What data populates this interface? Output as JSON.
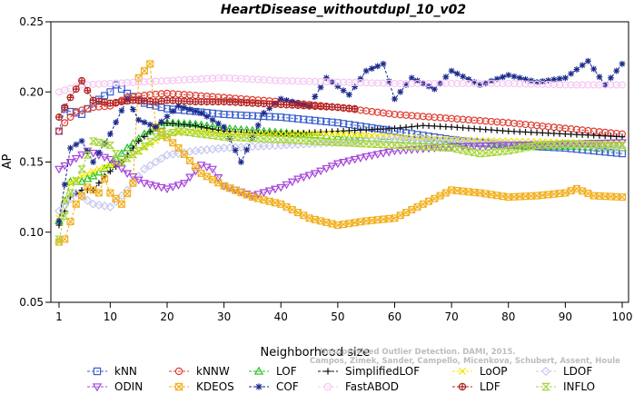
{
  "chart_data": {
    "type": "line",
    "title": "HeartDisease_withoutdupl_10_v02",
    "xlabel": "Neighborhood size",
    "ylabel": "AP",
    "xlim": [
      1,
      100
    ],
    "ylim": [
      0.05,
      0.25
    ],
    "xticks": [
      "1",
      "10",
      "20",
      "30",
      "40",
      "50",
      "60",
      "70",
      "80",
      "90",
      "100"
    ],
    "yticks": [
      "0.05",
      "0.10",
      "0.15",
      "0.20",
      "0.25"
    ],
    "grid": false,
    "legend_position": "bottom",
    "series": [
      {
        "name": "kNN",
        "color": "#3a5fcd",
        "marker": "square",
        "x_start": 1,
        "x_end": 100,
        "points": [
          [
            1,
            0.172
          ],
          [
            2,
            0.188
          ],
          [
            3,
            0.186
          ],
          [
            5,
            0.184
          ],
          [
            7,
            0.192
          ],
          [
            10,
            0.2
          ],
          [
            11,
            0.205
          ],
          [
            13,
            0.199
          ],
          [
            16,
            0.192
          ],
          [
            20,
            0.188
          ],
          [
            25,
            0.186
          ],
          [
            30,
            0.184
          ],
          [
            40,
            0.182
          ],
          [
            50,
            0.178
          ],
          [
            60,
            0.172
          ],
          [
            70,
            0.166
          ],
          [
            80,
            0.162
          ],
          [
            90,
            0.16
          ],
          [
            100,
            0.156
          ]
        ]
      },
      {
        "name": "kNNW",
        "color": "#e03c31",
        "marker": "circle",
        "x_start": 1,
        "x_end": 100,
        "points": [
          [
            1,
            0.172
          ],
          [
            2,
            0.178
          ],
          [
            4,
            0.186
          ],
          [
            7,
            0.189
          ],
          [
            10,
            0.19
          ],
          [
            13,
            0.196
          ],
          [
            17,
            0.198
          ],
          [
            20,
            0.199
          ],
          [
            30,
            0.196
          ],
          [
            40,
            0.193
          ],
          [
            50,
            0.189
          ],
          [
            60,
            0.184
          ],
          [
            70,
            0.181
          ],
          [
            80,
            0.178
          ],
          [
            90,
            0.174
          ],
          [
            100,
            0.17
          ]
        ]
      },
      {
        "name": "LOF",
        "color": "#22c11f",
        "marker": "triangle",
        "x_start": 1,
        "x_end": 100,
        "points": [
          [
            1,
            0.108
          ],
          [
            3,
            0.136
          ],
          [
            5,
            0.136
          ],
          [
            7,
            0.14
          ],
          [
            10,
            0.148
          ],
          [
            13,
            0.16
          ],
          [
            16,
            0.17
          ],
          [
            20,
            0.178
          ],
          [
            25,
            0.177
          ],
          [
            30,
            0.174
          ],
          [
            40,
            0.171
          ],
          [
            50,
            0.168
          ],
          [
            60,
            0.166
          ],
          [
            70,
            0.164
          ],
          [
            80,
            0.162
          ],
          [
            90,
            0.161
          ],
          [
            100,
            0.16
          ]
        ]
      },
      {
        "name": "SimplifiedLOF",
        "color": "#111111",
        "marker": "plus",
        "x_start": 1,
        "x_end": 100,
        "points": [
          [
            1,
            0.105
          ],
          [
            3,
            0.125
          ],
          [
            5,
            0.13
          ],
          [
            7,
            0.13
          ],
          [
            9,
            0.14
          ],
          [
            12,
            0.15
          ],
          [
            15,
            0.165
          ],
          [
            19,
            0.178
          ],
          [
            25,
            0.176
          ],
          [
            30,
            0.172
          ],
          [
            40,
            0.17
          ],
          [
            50,
            0.172
          ],
          [
            60,
            0.174
          ],
          [
            65,
            0.176
          ],
          [
            70,
            0.175
          ],
          [
            80,
            0.172
          ],
          [
            90,
            0.17
          ],
          [
            100,
            0.168
          ]
        ]
      },
      {
        "name": "LoOP",
        "color": "#f2e600",
        "marker": "x",
        "x_start": 1,
        "x_end": 100,
        "points": [
          [
            1,
            0.11
          ],
          [
            3,
            0.135
          ],
          [
            5,
            0.14
          ],
          [
            8,
            0.145
          ],
          [
            12,
            0.15
          ],
          [
            16,
            0.16
          ],
          [
            20,
            0.17
          ],
          [
            25,
            0.172
          ],
          [
            30,
            0.17
          ],
          [
            40,
            0.17
          ],
          [
            50,
            0.17
          ],
          [
            60,
            0.168
          ],
          [
            70,
            0.166
          ],
          [
            80,
            0.165
          ],
          [
            90,
            0.164
          ],
          [
            100,
            0.163
          ]
        ]
      },
      {
        "name": "LDOF",
        "color": "#c8c8f0",
        "marker": "diamond",
        "x_start": 1,
        "x_end": 100,
        "points": [
          [
            1,
            0.115
          ],
          [
            4,
            0.128
          ],
          [
            7,
            0.12
          ],
          [
            10,
            0.118
          ],
          [
            13,
            0.13
          ],
          [
            16,
            0.145
          ],
          [
            20,
            0.155
          ],
          [
            25,
            0.158
          ],
          [
            30,
            0.16
          ],
          [
            40,
            0.162
          ],
          [
            50,
            0.164
          ],
          [
            60,
            0.166
          ],
          [
            70,
            0.165
          ],
          [
            80,
            0.163
          ],
          [
            90,
            0.162
          ],
          [
            100,
            0.16
          ]
        ]
      },
      {
        "name": "ODIN",
        "color": "#a545d9",
        "marker": "triangle-down",
        "x_start": 1,
        "x_end": 100,
        "points": [
          [
            1,
            0.145
          ],
          [
            3,
            0.15
          ],
          [
            6,
            0.158
          ],
          [
            10,
            0.152
          ],
          [
            13,
            0.142
          ],
          [
            16,
            0.135
          ],
          [
            20,
            0.131
          ],
          [
            23,
            0.135
          ],
          [
            26,
            0.148
          ],
          [
            28,
            0.145
          ],
          [
            30,
            0.133
          ],
          [
            35,
            0.126
          ],
          [
            40,
            0.132
          ],
          [
            43,
            0.138
          ],
          [
            46,
            0.142
          ],
          [
            50,
            0.149
          ],
          [
            55,
            0.154
          ],
          [
            60,
            0.158
          ],
          [
            70,
            0.161
          ],
          [
            80,
            0.162
          ],
          [
            90,
            0.163
          ],
          [
            100,
            0.164
          ]
        ]
      },
      {
        "name": "KDEOS",
        "color": "#f2b01e",
        "marker": "square-x",
        "x_start": 1,
        "x_end": 100,
        "points": [
          [
            1,
            0.093
          ],
          [
            2,
            0.095
          ],
          [
            4,
            0.12
          ],
          [
            6,
            0.132
          ],
          [
            8,
            0.128
          ],
          [
            9,
            0.138
          ],
          [
            10,
            0.128
          ],
          [
            12,
            0.12
          ],
          [
            14,
            0.135
          ],
          [
            15,
            0.21
          ],
          [
            17,
            0.22
          ],
          [
            18,
            0.175
          ],
          [
            22,
            0.16
          ],
          [
            26,
            0.142
          ],
          [
            30,
            0.133
          ],
          [
            35,
            0.125
          ],
          [
            40,
            0.12
          ],
          [
            45,
            0.11
          ],
          [
            50,
            0.105
          ],
          [
            55,
            0.108
          ],
          [
            60,
            0.11
          ],
          [
            65,
            0.12
          ],
          [
            70,
            0.13
          ],
          [
            75,
            0.128
          ],
          [
            80,
            0.125
          ],
          [
            85,
            0.126
          ],
          [
            90,
            0.128
          ],
          [
            92,
            0.131
          ],
          [
            95,
            0.126
          ],
          [
            100,
            0.125
          ]
        ]
      },
      {
        "name": "COF",
        "color": "#1a2a8c",
        "marker": "asterisk",
        "x_start": 1,
        "x_end": 100,
        "points": [
          [
            1,
            0.108
          ],
          [
            3,
            0.16
          ],
          [
            5,
            0.165
          ],
          [
            7,
            0.15
          ],
          [
            10,
            0.17
          ],
          [
            13,
            0.195
          ],
          [
            15,
            0.18
          ],
          [
            18,
            0.175
          ],
          [
            22,
            0.19
          ],
          [
            26,
            0.185
          ],
          [
            30,
            0.175
          ],
          [
            33,
            0.15
          ],
          [
            37,
            0.185
          ],
          [
            40,
            0.195
          ],
          [
            45,
            0.19
          ],
          [
            48,
            0.21
          ],
          [
            52,
            0.198
          ],
          [
            55,
            0.215
          ],
          [
            58,
            0.22
          ],
          [
            60,
            0.195
          ],
          [
            63,
            0.21
          ],
          [
            67,
            0.202
          ],
          [
            70,
            0.215
          ],
          [
            75,
            0.205
          ],
          [
            80,
            0.212
          ],
          [
            85,
            0.207
          ],
          [
            90,
            0.21
          ],
          [
            94,
            0.222
          ],
          [
            97,
            0.205
          ],
          [
            100,
            0.22
          ]
        ]
      },
      {
        "name": "FastABOD",
        "color": "#f5c6f2",
        "marker": "circle",
        "x_start": 1,
        "x_end": 100,
        "points": [
          [
            1,
            0.2
          ],
          [
            5,
            0.205
          ],
          [
            10,
            0.206
          ],
          [
            15,
            0.207
          ],
          [
            20,
            0.208
          ],
          [
            30,
            0.21
          ],
          [
            40,
            0.208
          ],
          [
            50,
            0.207
          ],
          [
            60,
            0.206
          ],
          [
            70,
            0.206
          ],
          [
            80,
            0.206
          ],
          [
            90,
            0.205
          ],
          [
            100,
            0.205
          ]
        ]
      },
      {
        "name": "LDF",
        "color": "#b02020",
        "marker": "circle-plus",
        "x_start": 1,
        "x_end": 53,
        "points": [
          [
            1,
            0.182
          ],
          [
            3,
            0.196
          ],
          [
            5,
            0.208
          ],
          [
            7,
            0.194
          ],
          [
            10,
            0.192
          ],
          [
            14,
            0.194
          ],
          [
            18,
            0.193
          ],
          [
            20,
            0.194
          ],
          [
            25,
            0.193
          ],
          [
            30,
            0.193
          ],
          [
            35,
            0.192
          ],
          [
            40,
            0.191
          ],
          [
            45,
            0.19
          ],
          [
            50,
            0.189
          ],
          [
            53,
            0.188
          ]
        ]
      },
      {
        "name": "INFLO",
        "color": "#a8d63c",
        "marker": "hourglass",
        "x_start": 1,
        "x_end": 100,
        "points": [
          [
            1,
            0.095
          ],
          [
            3,
            0.128
          ],
          [
            5,
            0.145
          ],
          [
            7,
            0.165
          ],
          [
            10,
            0.162
          ],
          [
            12,
            0.15
          ],
          [
            15,
            0.158
          ],
          [
            18,
            0.168
          ],
          [
            22,
            0.172
          ],
          [
            26,
            0.17
          ],
          [
            30,
            0.168
          ],
          [
            40,
            0.166
          ],
          [
            50,
            0.164
          ],
          [
            60,
            0.162
          ],
          [
            70,
            0.16
          ],
          [
            75,
            0.156
          ],
          [
            80,
            0.158
          ],
          [
            85,
            0.162
          ],
          [
            90,
            0.163
          ],
          [
            100,
            0.162
          ]
        ]
      }
    ]
  },
  "watermark": {
    "line1": "Unsupervised Outlier Detection. DAMI, 2015.",
    "line2": "Campos, Zimek, Sander, Campello, Micenkova, Schubert, Assent, Houle"
  }
}
